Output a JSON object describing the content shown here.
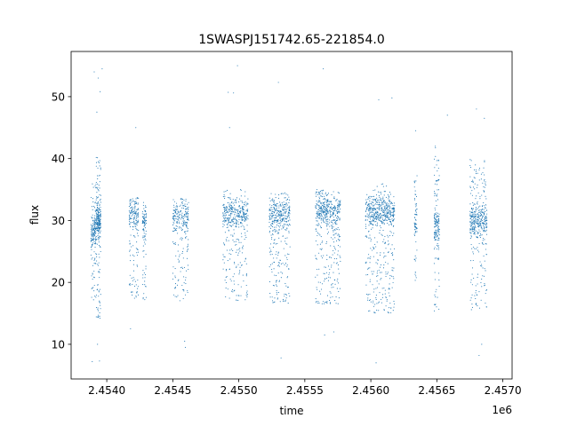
{
  "chart_data": {
    "type": "scatter",
    "title": "1SWASPJ151742.65-221854.0",
    "xlabel": "time",
    "ylabel": "flux",
    "x_offset_label": "1e6",
    "xlim": [
      2453730,
      2457070
    ],
    "ylim": [
      4.4,
      57.3
    ],
    "x_ticks": [
      2454000,
      2454500,
      2455000,
      2455500,
      2456000,
      2456500,
      2457000
    ],
    "x_tick_labels": [
      "2.4540",
      "2.4545",
      "2.4550",
      "2.4555",
      "2.4560",
      "2.4565",
      "2.4570"
    ],
    "y_ticks": [
      10,
      20,
      30,
      40,
      50
    ],
    "y_tick_labels": [
      "10",
      "20",
      "30",
      "40",
      "50"
    ],
    "grid": false,
    "legend": "none",
    "point_color": "#1f77b4",
    "series": [
      {
        "segments": [
          {
            "x": [
              2453880,
              2453920
            ],
            "center": 28.0,
            "low": 17.0,
            "high": 36.0,
            "points": 170
          },
          {
            "x": [
              2453920,
              2453955
            ],
            "center": 30.0,
            "low": 14.0,
            "high": 41.0,
            "points": 260
          },
          {
            "x": [
              2454170,
              2454240
            ],
            "center": 31.0,
            "low": 17.0,
            "high": 33.5,
            "points": 190
          },
          {
            "x": [
              2454270,
              2454300
            ],
            "center": 30.0,
            "low": 17.0,
            "high": 32.5,
            "points": 100
          },
          {
            "x": [
              2454500,
              2454620
            ],
            "center": 30.5,
            "low": 17.0,
            "high": 34.0,
            "points": 260
          },
          {
            "x": [
              2454880,
              2455070
            ],
            "center": 31.0,
            "low": 17.0,
            "high": 35.0,
            "points": 420
          },
          {
            "x": [
              2455230,
              2455390
            ],
            "center": 31.0,
            "low": 16.5,
            "high": 34.5,
            "points": 400
          },
          {
            "x": [
              2455580,
              2455770
            ],
            "center": 31.5,
            "low": 16.5,
            "high": 35.0,
            "points": 500
          },
          {
            "x": [
              2455960,
              2456180
            ],
            "center": 31.5,
            "low": 15.0,
            "high": 36.0,
            "points": 620
          },
          {
            "x": [
              2456330,
              2456350
            ],
            "center": 30.0,
            "low": 20.0,
            "high": 37.5,
            "points": 70
          },
          {
            "x": [
              2456480,
              2456520
            ],
            "center": 29.0,
            "low": 15.0,
            "high": 42.0,
            "points": 180
          },
          {
            "x": [
              2456750,
              2456880
            ],
            "center": 30.0,
            "low": 15.5,
            "high": 40.0,
            "points": 420
          }
        ],
        "outliers": [
          [
            2453905,
            54.0
          ],
          [
            2453935,
            53.0
          ],
          [
            2453950,
            50.8
          ],
          [
            2453965,
            54.5
          ],
          [
            2453925,
            47.5
          ],
          [
            2453890,
            7.2
          ],
          [
            2453945,
            7.3
          ],
          [
            2453930,
            10.0
          ],
          [
            2454220,
            45.0
          ],
          [
            2454180,
            12.5
          ],
          [
            2454590,
            10.5
          ],
          [
            2454595,
            9.5
          ],
          [
            2454920,
            50.7
          ],
          [
            2454960,
            50.6
          ],
          [
            2454990,
            55.0
          ],
          [
            2454930,
            45.0
          ],
          [
            2455300,
            52.3
          ],
          [
            2455320,
            7.8
          ],
          [
            2455640,
            54.5
          ],
          [
            2455720,
            12.0
          ],
          [
            2455650,
            11.5
          ],
          [
            2456060,
            49.5
          ],
          [
            2456160,
            49.8
          ],
          [
            2456040,
            7.0
          ],
          [
            2456340,
            44.5
          ],
          [
            2456580,
            47.0
          ],
          [
            2456800,
            48.0
          ],
          [
            2456860,
            46.5
          ],
          [
            2456820,
            8.2
          ],
          [
            2456840,
            10.0
          ]
        ]
      }
    ]
  }
}
